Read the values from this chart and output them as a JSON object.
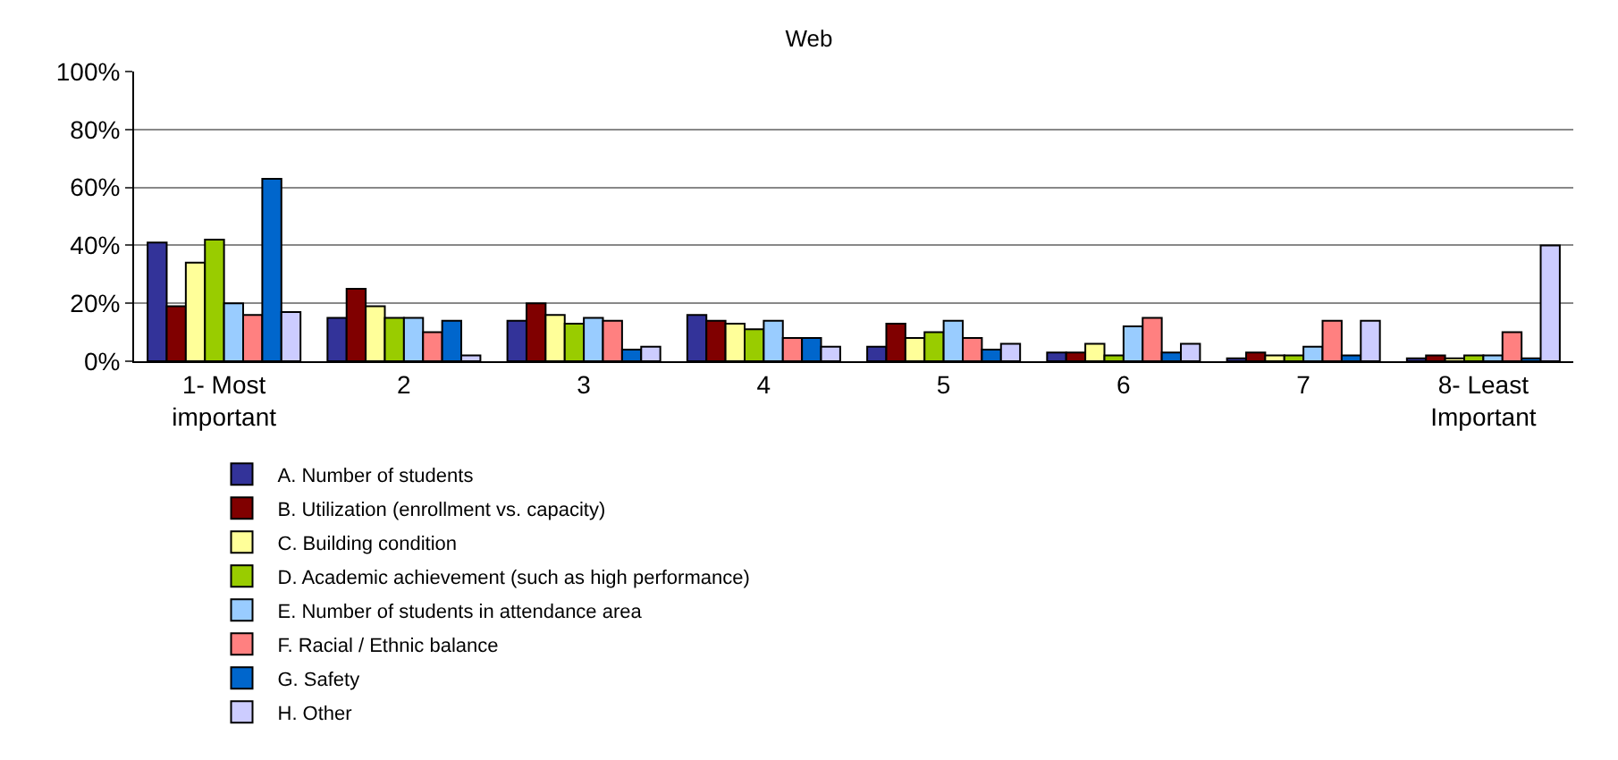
{
  "chart_data": {
    "type": "bar",
    "title": "Web",
    "categories": [
      "1- Most important",
      "2",
      "3",
      "4",
      "5",
      "6",
      "7",
      "8- Least Important"
    ],
    "series": [
      {
        "name": "A. Number of students",
        "color": "#333399",
        "values": [
          41,
          15,
          14,
          16,
          5,
          3,
          1,
          1
        ]
      },
      {
        "name": "B. Utilization (enrollment vs. capacity)",
        "color": "#800000",
        "values": [
          19,
          25,
          20,
          14,
          13,
          3,
          3,
          2
        ]
      },
      {
        "name": "C. Building condition",
        "color": "#ffff99",
        "values": [
          34,
          19,
          16,
          13,
          8,
          6,
          2,
          1
        ]
      },
      {
        "name": "D. Academic achievement (such as high performance)",
        "color": "#99cc00",
        "values": [
          42,
          15,
          13,
          11,
          10,
          2,
          2,
          2
        ]
      },
      {
        "name": "E. Number of students in attendance area",
        "color": "#99ccff",
        "values": [
          20,
          15,
          15,
          14,
          14,
          12,
          5,
          2
        ]
      },
      {
        "name": "F. Racial / Ethnic balance",
        "color": "#ff8080",
        "values": [
          16,
          10,
          14,
          8,
          8,
          15,
          14,
          10
        ]
      },
      {
        "name": "G. Safety",
        "color": "#0066cc",
        "values": [
          63,
          14,
          4,
          8,
          4,
          3,
          2,
          1
        ]
      },
      {
        "name": "H. Other",
        "color": "#ccccff",
        "values": [
          17,
          2,
          5,
          5,
          6,
          6,
          14,
          40
        ]
      }
    ],
    "ylim": [
      0,
      100
    ],
    "yticks": [
      {
        "value": 0,
        "label": "0%"
      },
      {
        "value": 20,
        "label": "20%"
      },
      {
        "value": 40,
        "label": "40%"
      },
      {
        "value": 60,
        "label": "60%"
      },
      {
        "value": 80,
        "label": "80%"
      },
      {
        "value": 100,
        "label": "100%"
      }
    ],
    "grid": "y",
    "legend": "bottom"
  }
}
